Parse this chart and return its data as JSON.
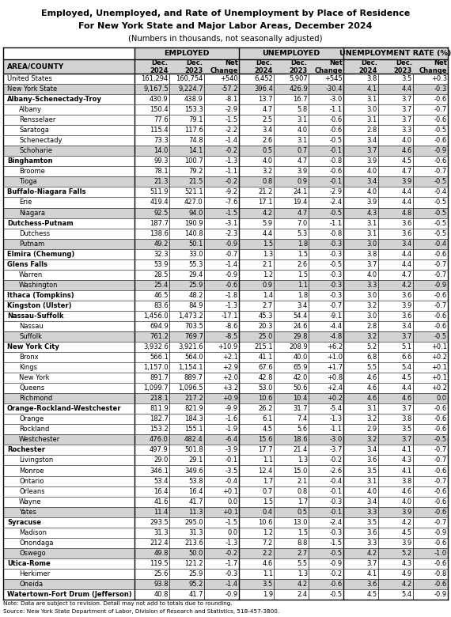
{
  "title_line1": "Employed, Unemployed, and Rate of Unemployment by Place of Residence",
  "title_line2": "For New York State and Major Labor Areas, December 2024",
  "title_line3": "(Numbers in thousands, not seasonally adjusted)",
  "note": "Note: Data are subject to revision. Detail may not add to totals due to rounding.",
  "source": "Source: New York State Department of Labor, Division of Research and Statistics, 518-457-3800.",
  "group_headers": [
    "EMPLOYED",
    "UNEMPLOYED",
    "UNEMPLOYMENT RATE (%)"
  ],
  "rows": [
    {
      "name": "United States",
      "level": 0,
      "bold": false,
      "shaded": false,
      "e24": "161,294",
      "e23": "160,754",
      "en": "+540",
      "u24": "6,452",
      "u23": "5,907",
      "un": "+545",
      "r24": "3.8",
      "r23": "3.5",
      "rn": "+0.3"
    },
    {
      "name": "New York State",
      "level": 0,
      "bold": false,
      "shaded": true,
      "e24": "9,167.5",
      "e23": "9,224.7",
      "en": "-57.2",
      "u24": "396.4",
      "u23": "426.9",
      "un": "-30.4",
      "r24": "4.1",
      "r23": "4.4",
      "rn": "-0.3"
    },
    {
      "name": "Albany-Schenectady-Troy",
      "level": 0,
      "bold": true,
      "shaded": false,
      "e24": "430.9",
      "e23": "438.9",
      "en": "-8.1",
      "u24": "13.7",
      "u23": "16.7",
      "un": "-3.0",
      "r24": "3.1",
      "r23": "3.7",
      "rn": "-0.6"
    },
    {
      "name": "Albany",
      "level": 1,
      "bold": false,
      "shaded": false,
      "e24": "150.4",
      "e23": "153.3",
      "en": "-2.9",
      "u24": "4.7",
      "u23": "5.8",
      "un": "-1.1",
      "r24": "3.0",
      "r23": "3.7",
      "rn": "-0.7"
    },
    {
      "name": "Rensselaer",
      "level": 1,
      "bold": false,
      "shaded": false,
      "e24": "77.6",
      "e23": "79.1",
      "en": "-1.5",
      "u24": "2.5",
      "u23": "3.1",
      "un": "-0.6",
      "r24": "3.1",
      "r23": "3.7",
      "rn": "-0.6"
    },
    {
      "name": "Saratoga",
      "level": 1,
      "bold": false,
      "shaded": false,
      "e24": "115.4",
      "e23": "117.6",
      "en": "-2.2",
      "u24": "3.4",
      "u23": "4.0",
      "un": "-0.6",
      "r24": "2.8",
      "r23": "3.3",
      "rn": "-0.5"
    },
    {
      "name": "Schenectady",
      "level": 1,
      "bold": false,
      "shaded": false,
      "e24": "73.3",
      "e23": "74.8",
      "en": "-1.4",
      "u24": "2.6",
      "u23": "3.1",
      "un": "-0.5",
      "r24": "3.4",
      "r23": "4.0",
      "rn": "-0.6"
    },
    {
      "name": "Schoharie",
      "level": 1,
      "bold": false,
      "shaded": true,
      "e24": "14.0",
      "e23": "14.1",
      "en": "-0.2",
      "u24": "0.5",
      "u23": "0.7",
      "un": "-0.1",
      "r24": "3.7",
      "r23": "4.6",
      "rn": "-0.9"
    },
    {
      "name": "Binghamton",
      "level": 0,
      "bold": true,
      "shaded": false,
      "e24": "99.3",
      "e23": "100.7",
      "en": "-1.3",
      "u24": "4.0",
      "u23": "4.7",
      "un": "-0.8",
      "r24": "3.9",
      "r23": "4.5",
      "rn": "-0.6"
    },
    {
      "name": "Broome",
      "level": 1,
      "bold": false,
      "shaded": false,
      "e24": "78.1",
      "e23": "79.2",
      "en": "-1.1",
      "u24": "3.2",
      "u23": "3.9",
      "un": "-0.6",
      "r24": "4.0",
      "r23": "4.7",
      "rn": "-0.7"
    },
    {
      "name": "Tioga",
      "level": 1,
      "bold": false,
      "shaded": true,
      "e24": "21.3",
      "e23": "21.5",
      "en": "-0.2",
      "u24": "0.8",
      "u23": "0.9",
      "un": "-0.1",
      "r24": "3.4",
      "r23": "3.9",
      "rn": "-0.5"
    },
    {
      "name": "Buffalo-Niagara Falls",
      "level": 0,
      "bold": true,
      "shaded": false,
      "e24": "511.9",
      "e23": "521.1",
      "en": "-9.2",
      "u24": "21.2",
      "u23": "24.1",
      "un": "-2.9",
      "r24": "4.0",
      "r23": "4.4",
      "rn": "-0.4"
    },
    {
      "name": "Erie",
      "level": 1,
      "bold": false,
      "shaded": false,
      "e24": "419.4",
      "e23": "427.0",
      "en": "-7.6",
      "u24": "17.1",
      "u23": "19.4",
      "un": "-2.4",
      "r24": "3.9",
      "r23": "4.4",
      "rn": "-0.5"
    },
    {
      "name": "Niagara",
      "level": 1,
      "bold": false,
      "shaded": true,
      "e24": "92.5",
      "e23": "94.0",
      "en": "-1.5",
      "u24": "4.2",
      "u23": "4.7",
      "un": "-0.5",
      "r24": "4.3",
      "r23": "4.8",
      "rn": "-0.5"
    },
    {
      "name": "Dutchess-Putnam",
      "level": 0,
      "bold": true,
      "shaded": false,
      "e24": "187.7",
      "e23": "190.9",
      "en": "-3.1",
      "u24": "5.9",
      "u23": "7.0",
      "un": "-1.1",
      "r24": "3.1",
      "r23": "3.6",
      "rn": "-0.5"
    },
    {
      "name": "Dutchess",
      "level": 1,
      "bold": false,
      "shaded": false,
      "e24": "138.6",
      "e23": "140.8",
      "en": "-2.3",
      "u24": "4.4",
      "u23": "5.3",
      "un": "-0.8",
      "r24": "3.1",
      "r23": "3.6",
      "rn": "-0.5"
    },
    {
      "name": "Putnam",
      "level": 1,
      "bold": false,
      "shaded": true,
      "e24": "49.2",
      "e23": "50.1",
      "en": "-0.9",
      "u24": "1.5",
      "u23": "1.8",
      "un": "-0.3",
      "r24": "3.0",
      "r23": "3.4",
      "rn": "-0.4"
    },
    {
      "name": "Elmira (Chemung)",
      "level": 0,
      "bold": true,
      "shaded": false,
      "e24": "32.3",
      "e23": "33.0",
      "en": "-0.7",
      "u24": "1.3",
      "u23": "1.5",
      "un": "-0.3",
      "r24": "3.8",
      "r23": "4.4",
      "rn": "-0.6"
    },
    {
      "name": "Glens Falls",
      "level": 0,
      "bold": true,
      "shaded": false,
      "e24": "53.9",
      "e23": "55.3",
      "en": "-1.4",
      "u24": "2.1",
      "u23": "2.6",
      "un": "-0.5",
      "r24": "3.7",
      "r23": "4.4",
      "rn": "-0.7"
    },
    {
      "name": "Warren",
      "level": 1,
      "bold": false,
      "shaded": false,
      "e24": "28.5",
      "e23": "29.4",
      "en": "-0.9",
      "u24": "1.2",
      "u23": "1.5",
      "un": "-0.3",
      "r24": "4.0",
      "r23": "4.7",
      "rn": "-0.7"
    },
    {
      "name": "Washington",
      "level": 1,
      "bold": false,
      "shaded": true,
      "e24": "25.4",
      "e23": "25.9",
      "en": "-0.6",
      "u24": "0.9",
      "u23": "1.1",
      "un": "-0.3",
      "r24": "3.3",
      "r23": "4.2",
      "rn": "-0.9"
    },
    {
      "name": "Ithaca (Tompkins)",
      "level": 0,
      "bold": true,
      "shaded": false,
      "e24": "46.5",
      "e23": "48.2",
      "en": "-1.8",
      "u24": "1.4",
      "u23": "1.8",
      "un": "-0.3",
      "r24": "3.0",
      "r23": "3.6",
      "rn": "-0.6"
    },
    {
      "name": "Kingston (Ulster)",
      "level": 0,
      "bold": true,
      "shaded": false,
      "e24": "83.6",
      "e23": "84.9",
      "en": "-1.3",
      "u24": "2.7",
      "u23": "3.4",
      "un": "-0.7",
      "r24": "3.2",
      "r23": "3.9",
      "rn": "-0.7"
    },
    {
      "name": "Nassau-Suffolk",
      "level": 0,
      "bold": true,
      "shaded": false,
      "e24": "1,456.0",
      "e23": "1,473.2",
      "en": "-17.1",
      "u24": "45.3",
      "u23": "54.4",
      "un": "-9.1",
      "r24": "3.0",
      "r23": "3.6",
      "rn": "-0.6"
    },
    {
      "name": "Nassau",
      "level": 1,
      "bold": false,
      "shaded": false,
      "e24": "694.9",
      "e23": "703.5",
      "en": "-8.6",
      "u24": "20.3",
      "u23": "24.6",
      "un": "-4.4",
      "r24": "2.8",
      "r23": "3.4",
      "rn": "-0.6"
    },
    {
      "name": "Suffolk",
      "level": 1,
      "bold": false,
      "shaded": true,
      "e24": "761.2",
      "e23": "769.7",
      "en": "-8.5",
      "u24": "25.0",
      "u23": "29.8",
      "un": "-4.8",
      "r24": "3.2",
      "r23": "3.7",
      "rn": "-0.5"
    },
    {
      "name": "New York City",
      "level": 0,
      "bold": true,
      "shaded": false,
      "e24": "3,932.6",
      "e23": "3,921.6",
      "en": "+10.9",
      "u24": "215.1",
      "u23": "208.9",
      "un": "+6.2",
      "r24": "5.2",
      "r23": "5.1",
      "rn": "+0.1"
    },
    {
      "name": "Bronx",
      "level": 1,
      "bold": false,
      "shaded": false,
      "e24": "566.1",
      "e23": "564.0",
      "en": "+2.1",
      "u24": "41.1",
      "u23": "40.0",
      "un": "+1.0",
      "r24": "6.8",
      "r23": "6.6",
      "rn": "+0.2"
    },
    {
      "name": "Kings",
      "level": 1,
      "bold": false,
      "shaded": false,
      "e24": "1,157.0",
      "e23": "1,154.1",
      "en": "+2.9",
      "u24": "67.6",
      "u23": "65.9",
      "un": "+1.7",
      "r24": "5.5",
      "r23": "5.4",
      "rn": "+0.1"
    },
    {
      "name": "New York",
      "level": 1,
      "bold": false,
      "shaded": false,
      "e24": "891.7",
      "e23": "889.7",
      "en": "+2.0",
      "u24": "42.8",
      "u23": "42.0",
      "un": "+0.8",
      "r24": "4.6",
      "r23": "4.5",
      "rn": "+0.1"
    },
    {
      "name": "Queens",
      "level": 1,
      "bold": false,
      "shaded": false,
      "e24": "1,099.7",
      "e23": "1,096.5",
      "en": "+3.2",
      "u24": "53.0",
      "u23": "50.6",
      "un": "+2.4",
      "r24": "4.6",
      "r23": "4.4",
      "rn": "+0.2"
    },
    {
      "name": "Richmond",
      "level": 1,
      "bold": false,
      "shaded": true,
      "e24": "218.1",
      "e23": "217.2",
      "en": "+0.9",
      "u24": "10.6",
      "u23": "10.4",
      "un": "+0.2",
      "r24": "4.6",
      "r23": "4.6",
      "rn": "0.0"
    },
    {
      "name": "Orange-Rockland-Westchester",
      "level": 0,
      "bold": true,
      "shaded": false,
      "e24": "811.9",
      "e23": "821.9",
      "en": "-9.9",
      "u24": "26.2",
      "u23": "31.7",
      "un": "-5.4",
      "r24": "3.1",
      "r23": "3.7",
      "rn": "-0.6"
    },
    {
      "name": "Orange",
      "level": 1,
      "bold": false,
      "shaded": false,
      "e24": "182.7",
      "e23": "184.3",
      "en": "-1.6",
      "u24": "6.1",
      "u23": "7.4",
      "un": "-1.3",
      "r24": "3.2",
      "r23": "3.8",
      "rn": "-0.6"
    },
    {
      "name": "Rockland",
      "level": 1,
      "bold": false,
      "shaded": false,
      "e24": "153.2",
      "e23": "155.1",
      "en": "-1.9",
      "u24": "4.5",
      "u23": "5.6",
      "un": "-1.1",
      "r24": "2.9",
      "r23": "3.5",
      "rn": "-0.6"
    },
    {
      "name": "Westchester",
      "level": 1,
      "bold": false,
      "shaded": true,
      "e24": "476.0",
      "e23": "482.4",
      "en": "-6.4",
      "u24": "15.6",
      "u23": "18.6",
      "un": "-3.0",
      "r24": "3.2",
      "r23": "3.7",
      "rn": "-0.5"
    },
    {
      "name": "Rochester",
      "level": 0,
      "bold": true,
      "shaded": false,
      "e24": "497.9",
      "e23": "501.8",
      "en": "-3.9",
      "u24": "17.7",
      "u23": "21.4",
      "un": "-3.7",
      "r24": "3.4",
      "r23": "4.1",
      "rn": "-0.7"
    },
    {
      "name": "Livingston",
      "level": 1,
      "bold": false,
      "shaded": false,
      "e24": "29.0",
      "e23": "29.1",
      "en": "-0.1",
      "u24": "1.1",
      "u23": "1.3",
      "un": "-0.2",
      "r24": "3.6",
      "r23": "4.3",
      "rn": "-0.7"
    },
    {
      "name": "Monroe",
      "level": 1,
      "bold": false,
      "shaded": false,
      "e24": "346.1",
      "e23": "349.6",
      "en": "-3.5",
      "u24": "12.4",
      "u23": "15.0",
      "un": "-2.6",
      "r24": "3.5",
      "r23": "4.1",
      "rn": "-0.6"
    },
    {
      "name": "Ontario",
      "level": 1,
      "bold": false,
      "shaded": false,
      "e24": "53.4",
      "e23": "53.8",
      "en": "-0.4",
      "u24": "1.7",
      "u23": "2.1",
      "un": "-0.4",
      "r24": "3.1",
      "r23": "3.8",
      "rn": "-0.7"
    },
    {
      "name": "Orleans",
      "level": 1,
      "bold": false,
      "shaded": false,
      "e24": "16.4",
      "e23": "16.4",
      "en": "+0.1",
      "u24": "0.7",
      "u23": "0.8",
      "un": "-0.1",
      "r24": "4.0",
      "r23": "4.6",
      "rn": "-0.6"
    },
    {
      "name": "Wayne",
      "level": 1,
      "bold": false,
      "shaded": false,
      "e24": "41.6",
      "e23": "41.7",
      "en": "0.0",
      "u24": "1.5",
      "u23": "1.7",
      "un": "-0.3",
      "r24": "3.4",
      "r23": "4.0",
      "rn": "-0.6"
    },
    {
      "name": "Yates",
      "level": 1,
      "bold": false,
      "shaded": true,
      "e24": "11.4",
      "e23": "11.3",
      "en": "+0.1",
      "u24": "0.4",
      "u23": "0.5",
      "un": "-0.1",
      "r24": "3.3",
      "r23": "3.9",
      "rn": "-0.6"
    },
    {
      "name": "Syracuse",
      "level": 0,
      "bold": true,
      "shaded": false,
      "e24": "293.5",
      "e23": "295.0",
      "en": "-1.5",
      "u24": "10.6",
      "u23": "13.0",
      "un": "-2.4",
      "r24": "3.5",
      "r23": "4.2",
      "rn": "-0.7"
    },
    {
      "name": "Madison",
      "level": 1,
      "bold": false,
      "shaded": false,
      "e24": "31.3",
      "e23": "31.3",
      "en": "0.0",
      "u24": "1.2",
      "u23": "1.5",
      "un": "-0.3",
      "r24": "3.6",
      "r23": "4.5",
      "rn": "-0.9"
    },
    {
      "name": "Onondaga",
      "level": 1,
      "bold": false,
      "shaded": false,
      "e24": "212.4",
      "e23": "213.6",
      "en": "-1.3",
      "u24": "7.2",
      "u23": "8.8",
      "un": "-1.5",
      "r24": "3.3",
      "r23": "3.9",
      "rn": "-0.6"
    },
    {
      "name": "Oswego",
      "level": 1,
      "bold": false,
      "shaded": true,
      "e24": "49.8",
      "e23": "50.0",
      "en": "-0.2",
      "u24": "2.2",
      "u23": "2.7",
      "un": "-0.5",
      "r24": "4.2",
      "r23": "5.2",
      "rn": "-1.0"
    },
    {
      "name": "Utica-Rome",
      "level": 0,
      "bold": true,
      "shaded": false,
      "e24": "119.5",
      "e23": "121.2",
      "en": "-1.7",
      "u24": "4.6",
      "u23": "5.5",
      "un": "-0.9",
      "r24": "3.7",
      "r23": "4.3",
      "rn": "-0.6"
    },
    {
      "name": "Herkimer",
      "level": 1,
      "bold": false,
      "shaded": false,
      "e24": "25.6",
      "e23": "25.9",
      "en": "-0.3",
      "u24": "1.1",
      "u23": "1.3",
      "un": "-0.2",
      "r24": "4.1",
      "r23": "4.9",
      "rn": "-0.8"
    },
    {
      "name": "Oneida",
      "level": 1,
      "bold": false,
      "shaded": true,
      "e24": "93.8",
      "e23": "95.2",
      "en": "-1.4",
      "u24": "3.5",
      "u23": "4.2",
      "un": "-0.6",
      "r24": "3.6",
      "r23": "4.2",
      "rn": "-0.6"
    },
    {
      "name": "Watertown-Fort Drum (Jefferson)",
      "level": 0,
      "bold": true,
      "shaded": false,
      "e24": "40.8",
      "e23": "41.7",
      "en": "-0.9",
      "u24": "1.9",
      "u23": "2.4",
      "un": "-0.5",
      "r24": "4.5",
      "r23": "5.4",
      "rn": "-0.9"
    }
  ],
  "shade_color": "#d3d3d3",
  "bg_color": "#ffffff"
}
